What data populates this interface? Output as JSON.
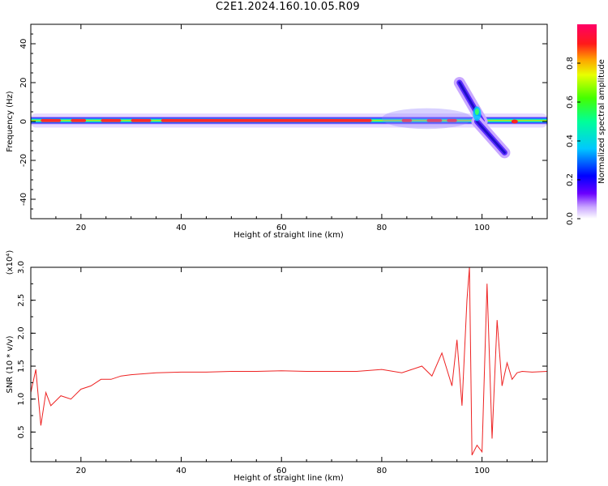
{
  "title": "C2E1.2024.160.10.05.R09",
  "chart_data": [
    {
      "type": "heatmap",
      "xlabel": "Height of straight line (km)",
      "ylabel": "Frequency (Hz)",
      "xlim": [
        10,
        113
      ],
      "ylim": [
        -50,
        50
      ],
      "xticks": [
        20,
        40,
        60,
        80,
        100
      ],
      "yticks": [
        -40,
        -20,
        0,
        20,
        40
      ],
      "colorbar": {
        "label": "Normalized spectral amplitude",
        "range": [
          0.0,
          1.0
        ],
        "ticks": [
          0.0,
          0.2,
          0.4,
          0.6,
          0.8
        ],
        "colormap": "rainbow"
      },
      "features": [
        {
          "name": "main-band",
          "x": [
            10,
            113
          ],
          "center_freq": 0.5,
          "half_width": 2
        },
        {
          "name": "upper-branch",
          "x": [
            95.5,
            100
          ],
          "freq": [
            20,
            0
          ]
        },
        {
          "name": "lower-branch",
          "x": [
            99,
            104.5
          ],
          "freq": [
            0,
            -16
          ]
        }
      ]
    },
    {
      "type": "line",
      "xlabel": "Height of straight line (km)",
      "ylabel": "SNR (10 * v/v)",
      "yscale_label": "(x10⁴)",
      "xlim": [
        10,
        113
      ],
      "ylim": [
        0.05,
        3.0
      ],
      "xticks": [
        20,
        40,
        60,
        80,
        100
      ],
      "yticks": [
        0.5,
        1.0,
        1.5,
        2.0,
        2.5,
        3.0
      ],
      "color": "#ee2222",
      "series": [
        {
          "x": [
            10,
            11,
            12,
            13,
            14,
            16,
            18,
            20,
            22,
            24,
            26,
            28,
            30,
            35,
            40,
            45,
            50,
            55,
            60,
            65,
            70,
            75,
            80,
            84,
            86,
            88,
            90,
            92,
            94,
            95,
            96,
            97,
            97.5,
            98,
            99,
            100,
            101,
            102,
            103,
            104,
            105,
            106,
            107,
            108,
            110,
            113
          ],
          "y": [
            1.1,
            1.45,
            0.6,
            1.1,
            0.9,
            1.05,
            1.0,
            1.15,
            1.2,
            1.3,
            1.3,
            1.35,
            1.37,
            1.4,
            1.41,
            1.41,
            1.42,
            1.42,
            1.43,
            1.42,
            1.42,
            1.42,
            1.45,
            1.4,
            1.45,
            1.5,
            1.35,
            1.7,
            1.2,
            1.9,
            0.9,
            2.5,
            3.0,
            0.15,
            0.3,
            0.2,
            2.75,
            0.4,
            2.2,
            1.2,
            1.55,
            1.3,
            1.4,
            1.42,
            1.41,
            1.42
          ]
        }
      ]
    }
  ]
}
